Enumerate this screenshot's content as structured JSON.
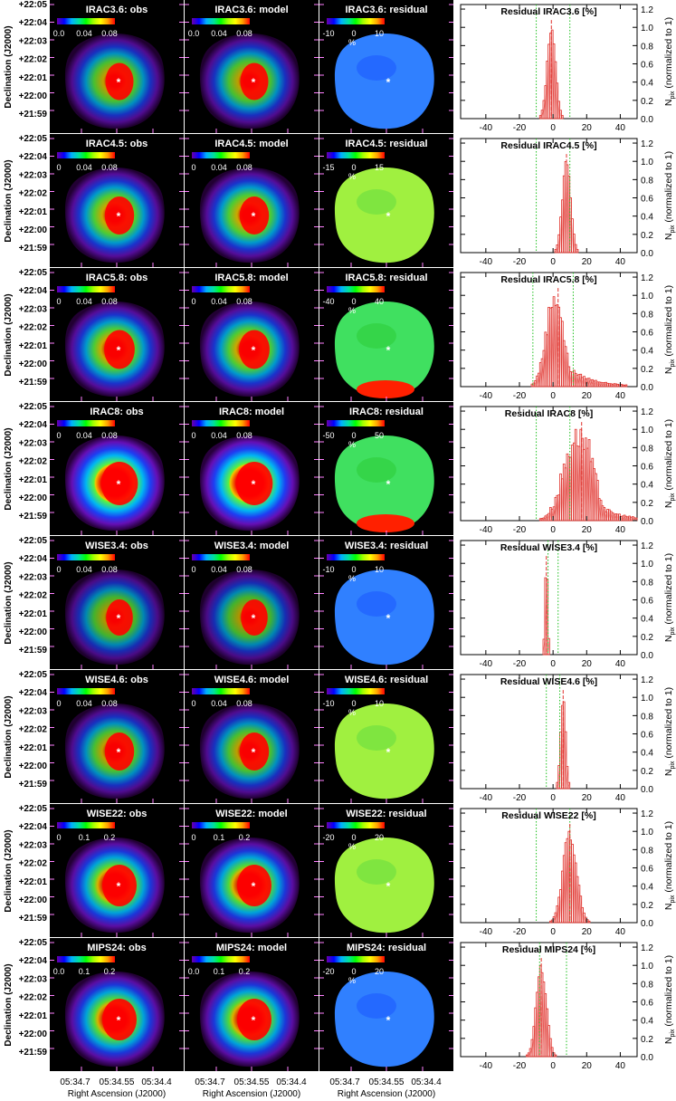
{
  "chart_data": {
    "type": "figure-grid",
    "map_columns": [
      {
        "key": "obs",
        "suffix": "obs"
      },
      {
        "key": "model",
        "suffix": "model"
      },
      {
        "key": "residual",
        "suffix": "residual"
      }
    ],
    "dec_ticks": [
      "+22:05",
      "+22:04",
      "+22:03",
      "+22:02",
      "+22:01",
      "+22:00",
      "+21:59"
    ],
    "dec_label": "Declination (J2000)",
    "ra_ticks": [
      "05:34.7",
      "05:34.55",
      "05:34.4"
    ],
    "ra_label": "Right Ascension (J2000)",
    "hist_x_ticks": [
      "-40",
      "-20",
      "0",
      "20",
      "40"
    ],
    "hist_xlim": [
      -55,
      50
    ],
    "hist_y_ticks": [
      "0.0",
      "0.2",
      "0.4",
      "0.6",
      "0.8",
      "1.0",
      "1.2"
    ],
    "hist_ylim": [
      0,
      1.25
    ],
    "hist_ylabel_main": "N",
    "hist_ylabel_sub": "pix",
    "hist_ylabel_rest": "(normalized to 1)",
    "residual_unit": "%",
    "rows": [
      {
        "band": "IRAC3.6",
        "obs_title": "IRAC3.6: obs",
        "model_title": "IRAC3.6: model",
        "res_title": "IRAC3.6: residual",
        "cbar_ticks": [
          "0.0",
          "0.04",
          "0.08"
        ],
        "res_ticks": [
          "-10",
          "0",
          "10"
        ],
        "hist_title": "Residual IRAC3.6 [%]",
        "green_lines": [
          -10,
          10
        ],
        "red_line": -1,
        "hist": {
          "center": -1,
          "sigma": 2.5,
          "tail": 0,
          "noise": 0.05
        },
        "intensity": 0.75,
        "hot": 0.25,
        "res_base": "blue"
      },
      {
        "band": "IRAC4.5",
        "obs_title": "IRAC4.5: obs",
        "model_title": "IRAC4.5: model",
        "res_title": "IRAC4.5: residual",
        "cbar_ticks": [
          "0",
          "0.04",
          "0.08"
        ],
        "res_ticks": [
          "-15",
          "0",
          "15"
        ],
        "hist_title": "Residual IRAC4.5 [%]",
        "green_lines": [
          -10,
          10
        ],
        "red_line": 8,
        "hist": {
          "center": 8,
          "sigma": 2.5,
          "tail": 0,
          "noise": 0.05
        },
        "intensity": 0.8,
        "hot": 0.3,
        "res_base": "yellowgreen"
      },
      {
        "band": "IRAC5.8",
        "obs_title": "IRAC5.8: obs",
        "model_title": "IRAC5.8: model",
        "res_title": "IRAC5.8: residual",
        "cbar_ticks": [
          "0",
          "0.04",
          "0.08"
        ],
        "res_ticks": [
          "-40",
          "0",
          "40"
        ],
        "hist_title": "Residual IRAC5.8 [%]",
        "green_lines": [
          -12,
          12
        ],
        "red_line": 3,
        "hist": {
          "center": 1,
          "sigma": 5,
          "tail": 1,
          "noise": 0.15
        },
        "intensity": 0.8,
        "hot": 0.35,
        "res_base": "green"
      },
      {
        "band": "IRAC8",
        "obs_title": "IRAC8: obs",
        "model_title": "IRAC8: model",
        "res_title": "IRAC8: residual",
        "cbar_ticks": [
          "0",
          "0.04",
          "0.08"
        ],
        "res_ticks": [
          "-50",
          "0",
          "50"
        ],
        "hist_title": "Residual IRAC8 [%]",
        "green_lines": [
          -10,
          10
        ],
        "red_line": 17,
        "hist": {
          "center": 15,
          "sigma": 8,
          "tail": 1,
          "noise": 0.25
        },
        "intensity": 0.95,
        "hot": 0.6,
        "res_base": "green"
      },
      {
        "band": "WISE3.4",
        "obs_title": "WISE3.4: obs",
        "model_title": "WISE3.4: model",
        "res_title": "WISE3.4: residual",
        "cbar_ticks": [
          "0",
          "0.04",
          "0.08"
        ],
        "res_ticks": [
          "-10",
          "0",
          "10"
        ],
        "hist_title": "Residual WISE3.4 [%]",
        "green_lines": [
          -3,
          3
        ],
        "red_line": -4,
        "hist": {
          "center": -4,
          "sigma": 0.8,
          "tail": 0,
          "noise": 0.03
        },
        "intensity": 0.7,
        "hot": 0.2,
        "res_base": "blue"
      },
      {
        "band": "WISE4.6",
        "obs_title": "WISE4.6: obs",
        "model_title": "WISE4.6: model",
        "res_title": "WISE4.6: residual",
        "cbar_ticks": [
          "0",
          "0.04",
          "0.08"
        ],
        "res_ticks": [
          "-10",
          "0",
          "10"
        ],
        "hist_title": "Residual WISE4.6 [%]",
        "green_lines": [
          -4,
          4
        ],
        "red_line": 6,
        "hist": {
          "center": 6,
          "sigma": 1.5,
          "tail": 0,
          "noise": 0.04
        },
        "intensity": 0.75,
        "hot": 0.3,
        "res_base": "yellowgreen"
      },
      {
        "band": "WISE22",
        "obs_title": "WISE22: obs",
        "model_title": "WISE22: model",
        "res_title": "WISE22: residual",
        "cbar_ticks": [
          "0",
          "0.1",
          "0.2"
        ],
        "res_ticks": [
          "-20",
          "0",
          "20"
        ],
        "hist_title": "Residual WISE22 [%]",
        "green_lines": [
          -10,
          10
        ],
        "red_line": 10,
        "hist": {
          "center": 10,
          "sigma": 4,
          "tail": 0,
          "noise": 0.1
        },
        "intensity": 0.85,
        "hot": 0.5,
        "res_base": "yellowgreen"
      },
      {
        "band": "MIPS24",
        "obs_title": "MIPS24: obs",
        "model_title": "MIPS24: model",
        "res_title": "MIPS24: residual",
        "cbar_ticks": [
          "0.0",
          "0.1",
          "0.2"
        ],
        "res_ticks": [
          "-20",
          "0",
          "20"
        ],
        "hist_title": "Residual MIPS24 [%]",
        "green_lines": [
          -8,
          8
        ],
        "red_line": -7,
        "hist": {
          "center": -7,
          "sigma": 3,
          "tail": 0,
          "noise": 0.08
        },
        "intensity": 0.85,
        "hot": 0.5,
        "res_base": "blue"
      }
    ]
  },
  "colors": {
    "background": "#000000",
    "tick": "#ff80ff",
    "hist_red": "#e0302a",
    "hist_green": "#20c020",
    "marker": "#ffffff"
  }
}
